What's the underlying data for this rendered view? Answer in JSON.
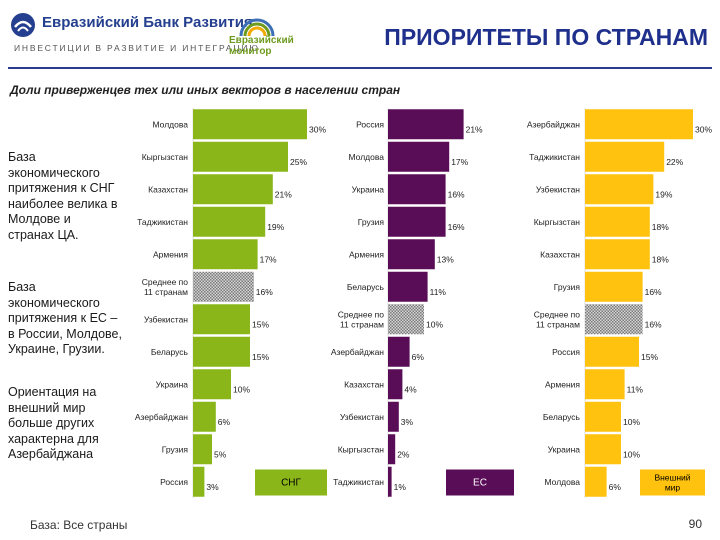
{
  "header": {
    "bank_name": "Евразийский Банк Развития",
    "bank_tagline": "ИНВЕСТИЦИИ В РАЗВИТИЕ И ИНТЕГРАЦИЮ",
    "monitor_line1": "Евразийский",
    "monitor_line2": "монитор",
    "title": "ПРИОРИТЕТЫ ПО СТРАНАМ"
  },
  "subtitle": "Доли приверженцев тех или иных векторов в населении стран",
  "notes": [
    "База экономического притяжения к СНГ наиболее велика в Молдове и странах ЦА.",
    "База экономического притяжения к ЕС – в России, Молдове, Украине, Грузии.",
    "Ориентация на внешний мир больше других характерна для Азербайджана"
  ],
  "footer": {
    "base": "База: Все страны",
    "page": "90"
  },
  "colors": {
    "cis": "#8ab61a",
    "eu": "#5a0d57",
    "world": "#ffc20e",
    "title": "#1f2f8c"
  },
  "chart_data": [
    {
      "type": "bar",
      "series_label": "СНГ",
      "categories": [
        "Молдова",
        "Кыргызстан",
        "Казахстан",
        "Таджикистан",
        "Армения",
        "Среднее по 11 странам",
        "Узбекистан",
        "Беларусь",
        "Украина",
        "Азербайджан",
        "Грузия",
        "Россия"
      ],
      "values": [
        30,
        25,
        21,
        19,
        17,
        16,
        15,
        15,
        10,
        6,
        5,
        3
      ],
      "average_category": "Среднее по 11 странам",
      "unit": "%"
    },
    {
      "type": "bar",
      "series_label": "ЕС",
      "categories": [
        "Россия",
        "Молдова",
        "Украина",
        "Грузия",
        "Армения",
        "Беларусь",
        "Среднее по 11 странам",
        "Азербайджан",
        "Казахстан",
        "Узбекистан",
        "Кыргызстан",
        "Таджикистан"
      ],
      "values": [
        21,
        17,
        16,
        16,
        13,
        11,
        10,
        6,
        4,
        3,
        2,
        1
      ],
      "average_category": "Среднее по 11 странам",
      "unit": "%"
    },
    {
      "type": "bar",
      "series_label": "Внешний мир",
      "categories": [
        "Азербайджан",
        "Таджикистан",
        "Узбекистан",
        "Кыргызстан",
        "Казахстан",
        "Грузия",
        "Среднее по 11 странам",
        "Россия",
        "Армения",
        "Беларусь",
        "Украина",
        "Молдова"
      ],
      "values": [
        30,
        22,
        19,
        18,
        18,
        16,
        16,
        15,
        11,
        10,
        10,
        6
      ],
      "average_category": "Среднее по 11 странам",
      "unit": "%"
    }
  ]
}
